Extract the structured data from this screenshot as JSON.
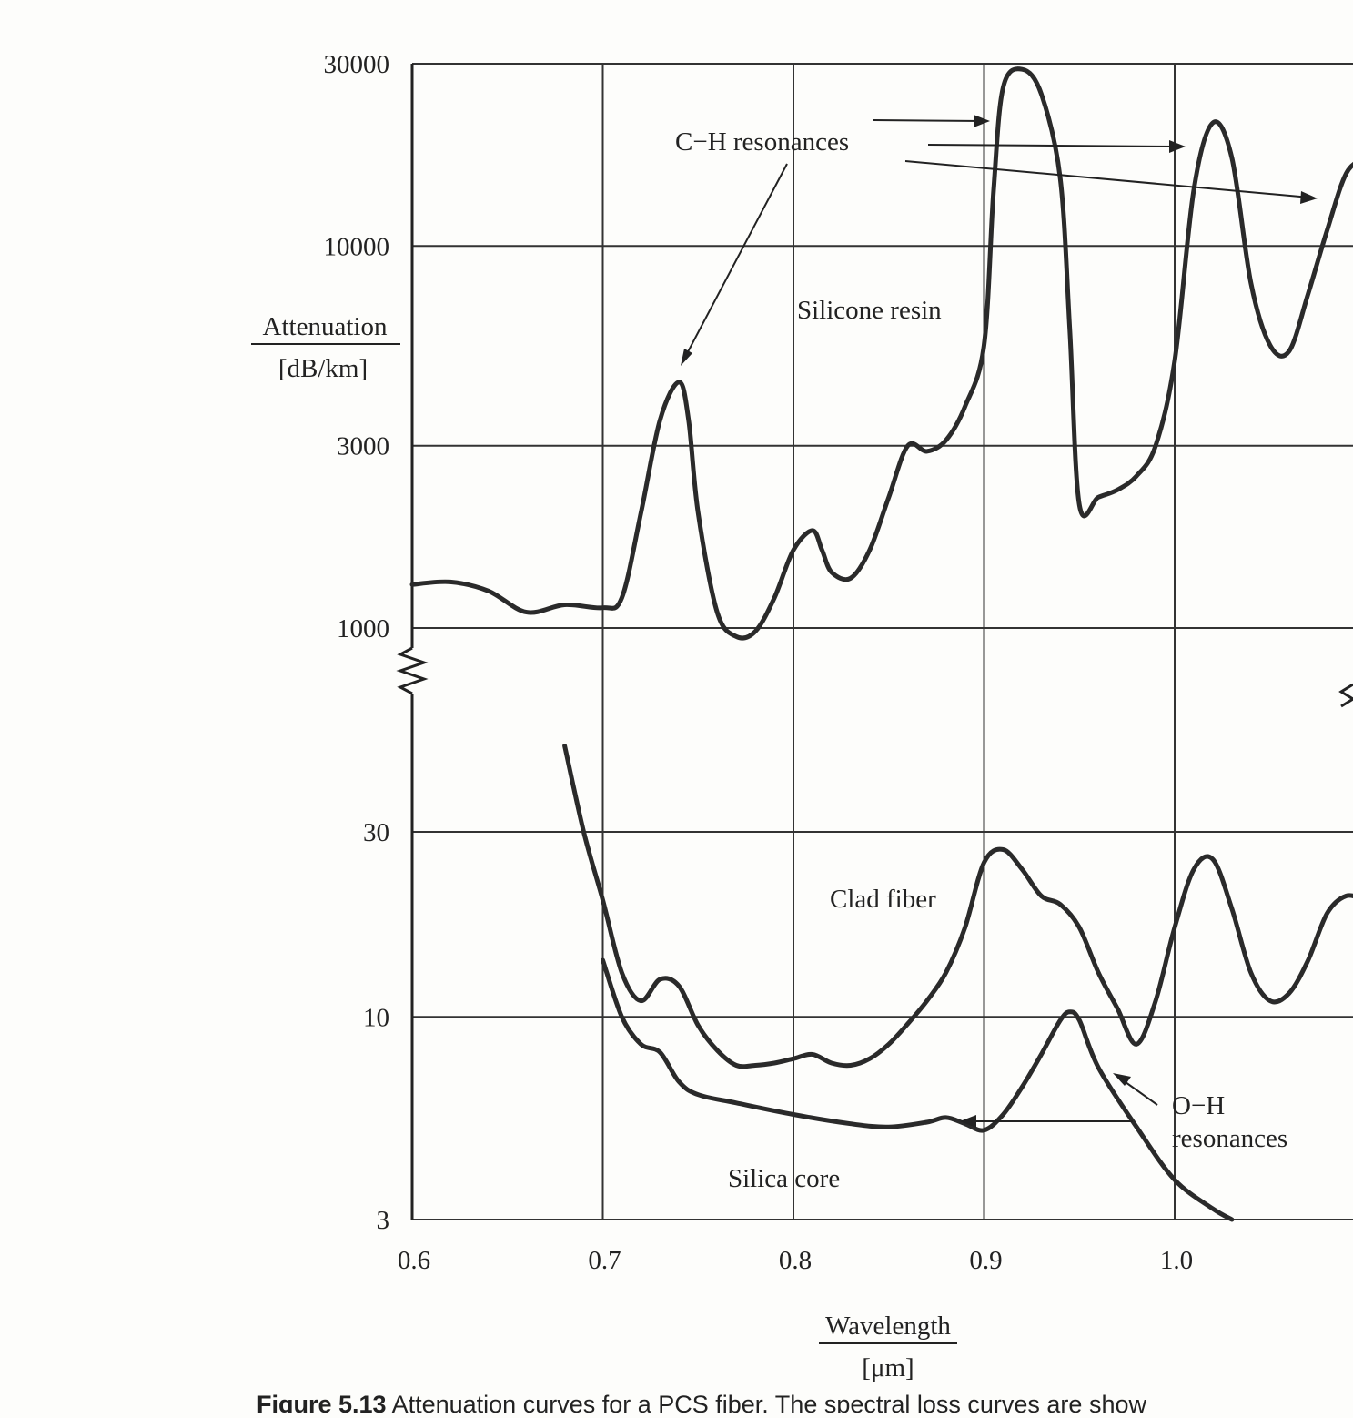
{
  "chart_data": {
    "type": "line",
    "ylabel": "Attenuation",
    "ylabel_unit": "[dB/km]",
    "xlabel": "Wavelength",
    "xlabel_unit": "[μm]",
    "y_scale": "log",
    "y_axis_break": true,
    "xlim": [
      0.6,
      1.1
    ],
    "x_ticks": [
      "0.6",
      "0.7",
      "0.8",
      "0.9",
      "1.0",
      "1"
    ],
    "y_ticks": [
      "30000",
      "10000",
      "3000",
      "1000",
      "30",
      "10",
      "3"
    ],
    "grid": true,
    "series": [
      {
        "name": "Silicone resin",
        "x": [
          0.6,
          0.62,
          0.64,
          0.66,
          0.68,
          0.7,
          0.71,
          0.72,
          0.73,
          0.74,
          0.745,
          0.75,
          0.76,
          0.77,
          0.78,
          0.79,
          0.8,
          0.81,
          0.815,
          0.82,
          0.83,
          0.84,
          0.85,
          0.86,
          0.87,
          0.88,
          0.89,
          0.9,
          0.905,
          0.91,
          0.92,
          0.93,
          0.94,
          0.945,
          0.95,
          0.96,
          0.97,
          0.98,
          0.99,
          1.0,
          1.01,
          1.02,
          1.03,
          1.04,
          1.05,
          1.06,
          1.07,
          1.08,
          1.09,
          1.1
        ],
        "y": [
          1300,
          1320,
          1250,
          1100,
          1150,
          1130,
          1200,
          2000,
          3500,
          4400,
          3500,
          2000,
          1100,
          950,
          980,
          1200,
          1600,
          1800,
          1600,
          1400,
          1350,
          1600,
          2200,
          3000,
          2900,
          3100,
          3800,
          5500,
          14000,
          26000,
          29000,
          25000,
          15000,
          6000,
          2100,
          2200,
          2300,
          2500,
          3000,
          5000,
          14000,
          21000,
          17000,
          8000,
          5500,
          5300,
          7500,
          11000,
          15500,
          17000
        ]
      },
      {
        "name": "Clad fiber",
        "x": [
          0.68,
          0.69,
          0.7,
          0.71,
          0.72,
          0.73,
          0.74,
          0.75,
          0.76,
          0.77,
          0.78,
          0.79,
          0.8,
          0.81,
          0.82,
          0.83,
          0.84,
          0.85,
          0.86,
          0.87,
          0.88,
          0.89,
          0.9,
          0.91,
          0.92,
          0.93,
          0.94,
          0.95,
          0.96,
          0.97,
          0.98,
          0.99,
          1.0,
          1.01,
          1.02,
          1.03,
          1.04,
          1.05,
          1.06,
          1.07,
          1.08,
          1.09,
          1.1
        ],
        "y": [
          50,
          30,
          20,
          13,
          11,
          12.5,
          12,
          9.5,
          8.2,
          7.5,
          7.5,
          7.6,
          7.8,
          8,
          7.6,
          7.5,
          7.8,
          8.5,
          9.6,
          11,
          13,
          17,
          25,
          27,
          24,
          20.5,
          19.5,
          17,
          13,
          10.5,
          8.5,
          11,
          17,
          24,
          25.5,
          19,
          13,
          11,
          11.5,
          14,
          18.5,
          20.5,
          20
        ]
      },
      {
        "name": "Silica core",
        "x": [
          0.7,
          0.71,
          0.72,
          0.73,
          0.74,
          0.75,
          0.77,
          0.8,
          0.83,
          0.85,
          0.87,
          0.88,
          0.89,
          0.9,
          0.91,
          0.92,
          0.93,
          0.94,
          0.945,
          0.95,
          0.96,
          0.98,
          1.0,
          1.02,
          1.03
        ],
        "y": [
          14,
          10,
          8.5,
          8.1,
          6.8,
          6.3,
          6,
          5.6,
          5.3,
          5.2,
          5.35,
          5.5,
          5.3,
          5.1,
          5.6,
          6.6,
          8,
          9.8,
          10.3,
          9.8,
          7.4,
          5.2,
          3.8,
          3.2,
          3
        ]
      }
    ],
    "annotations": [
      {
        "text": "C−H resonances"
      },
      {
        "text": "O−H"
      },
      {
        "text": "resonances"
      }
    ]
  },
  "caption": {
    "label": "Figure 5.13",
    "text": "Attenuation curves for a PCS fiber. The spectral loss curves are show"
  }
}
